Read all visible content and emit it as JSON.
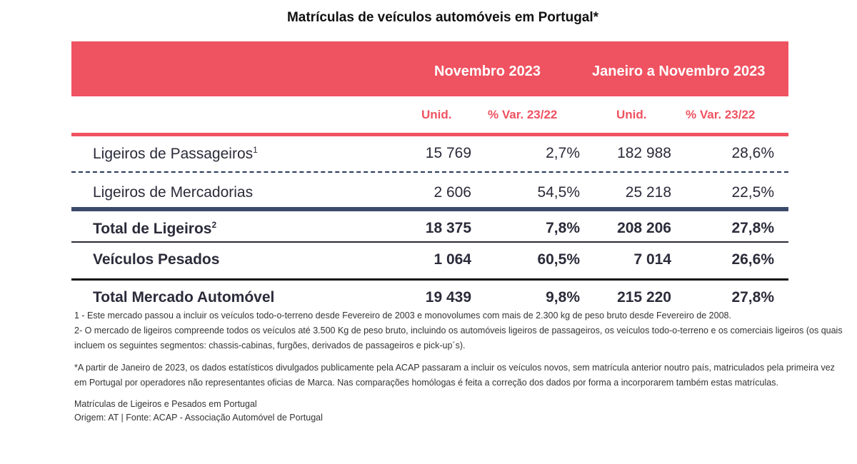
{
  "title": "Matrículas de veículos automóveis em Portugal*",
  "header": {
    "period1": "Novembro 2023",
    "period2": "Janeiro a Novembro 2023",
    "col_units_1": "Unid.",
    "col_var_1": "% Var. 23/22",
    "col_units_2": "Unid.",
    "col_var_2": "% Var. 23/22"
  },
  "rows": [
    {
      "label": "Ligeiros de Passageiros",
      "sup": "1",
      "nov_units": "15 769",
      "nov_var": "2,7%",
      "ytd_units": "182 988",
      "ytd_var": "28,6%"
    },
    {
      "label": "Ligeiros de Mercadorias",
      "sup": "",
      "nov_units": "2 606",
      "nov_var": "54,5%",
      "ytd_units": "25 218",
      "ytd_var": "22,5%"
    },
    {
      "label": "Total de Ligeiros",
      "sup": "2",
      "nov_units": "18 375",
      "nov_var": "7,8%",
      "ytd_units": "208 206",
      "ytd_var": "27,8%"
    },
    {
      "label": "Veículos Pesados",
      "sup": "",
      "nov_units": "1 064",
      "nov_var": "60,5%",
      "ytd_units": "7 014",
      "ytd_var": "26,6%"
    },
    {
      "label": "Total Mercado Automóvel",
      "sup": "",
      "nov_units": "19 439",
      "nov_var": "9,8%",
      "ytd_units": "215 220",
      "ytd_var": "27,8%"
    }
  ],
  "notes": {
    "n1": "1 - Este mercado passou a incluir os veículos todo-o-terreno desde Fevereiro de 2003 e monovolumes com mais de 2.300 kg de peso bruto desde Fevereiro de 2008.",
    "n2": "2- O mercado de ligeiros compreende todos os veículos até 3.500 Kg de peso bruto, incluindo os automóveis ligeiros de passageiros, os veículos todo-o-terreno e os comerciais ligeiros (os quais incluem os seguintes segmentos: chassis-cabinas, furgões, derivados de passageiros e pick-up´s).",
    "n3": "*A partir de Janeiro de 2023, os dados estatísticos divulgados publicamente pela ACAP passaram a incluir os veículos novos, sem matrícula anterior noutro país, matriculados pela primeira vez em Portugal por operadores não representantes oficias de Marca. Nas comparações homólogas é feita a correção dos dados por forma a incorporarem também estas matrículas.",
    "source1": "Matrículas de Ligeiros e Pesados em Portugal",
    "source2": "Origem: AT | Fonte: ACAP - Associação Automóvel de Portugal"
  }
}
